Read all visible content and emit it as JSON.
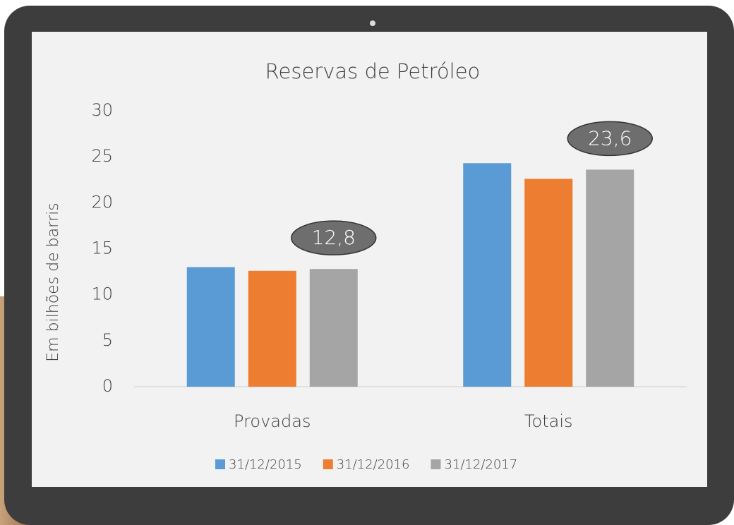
{
  "chart_data": {
    "type": "bar",
    "title": "Reservas de Petróleo",
    "y_label": "Em bilhões de barris",
    "categories": [
      "Provadas",
      "Totais"
    ],
    "series": [
      {
        "name": "31/12/2015",
        "color": "#5b9bd5",
        "values": [
          13.0,
          24.3
        ]
      },
      {
        "name": "31/12/2016",
        "color": "#ed7d31",
        "values": [
          12.6,
          22.6
        ]
      },
      {
        "name": "31/12/2017",
        "color": "#a5a5a5",
        "values": [
          12.8,
          23.6
        ],
        "value_labels": [
          "12,8",
          "23,6"
        ]
      }
    ],
    "ylim": [
      0,
      30
    ],
    "yticks": [
      0,
      5,
      10,
      15,
      20,
      25,
      30
    ],
    "grid": false,
    "legend": "bottom"
  }
}
